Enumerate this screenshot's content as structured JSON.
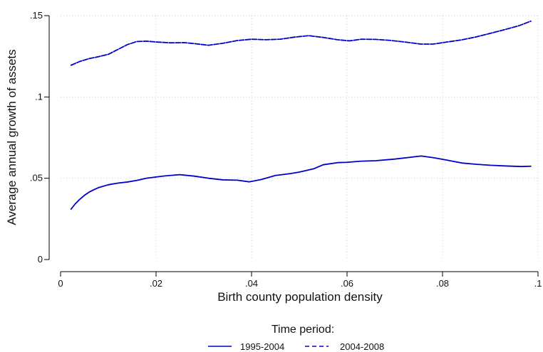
{
  "chart_data": {
    "type": "line",
    "xlabel": "Birth county population density",
    "ylabel": "Average annual growth of assets",
    "xlim": [
      0,
      0.1
    ],
    "ylim": [
      0,
      0.15
    ],
    "x_ticks": [
      {
        "value": 0,
        "label": "0"
      },
      {
        "value": 0.02,
        "label": ".02"
      },
      {
        "value": 0.04,
        "label": ".04"
      },
      {
        "value": 0.06,
        "label": ".06"
      },
      {
        "value": 0.08,
        "label": ".08"
      },
      {
        "value": 0.1,
        "label": ".1"
      }
    ],
    "y_ticks": [
      {
        "value": 0,
        "label": "0"
      },
      {
        "value": 0.05,
        "label": ".05"
      },
      {
        "value": 0.1,
        "label": ".1"
      },
      {
        "value": 0.15,
        "label": ".15"
      }
    ],
    "grid": "dotted, on major y ticks and x ticks",
    "legend": {
      "title": "Time period:",
      "placement": "bottom-center"
    },
    "colors": {
      "series": "#0000cc",
      "grid": "#c8c8c8",
      "axis": "#000000"
    },
    "series": [
      {
        "name": "1995-2004",
        "style": "solid",
        "points": [
          [
            0.0022,
            0.031
          ],
          [
            0.003,
            0.034
          ],
          [
            0.004,
            0.037
          ],
          [
            0.005,
            0.0395
          ],
          [
            0.006,
            0.0415
          ],
          [
            0.007,
            0.043
          ],
          [
            0.008,
            0.0443
          ],
          [
            0.01,
            0.046
          ],
          [
            0.012,
            0.047
          ],
          [
            0.014,
            0.0477
          ],
          [
            0.016,
            0.0487
          ],
          [
            0.018,
            0.05
          ],
          [
            0.02,
            0.0508
          ],
          [
            0.022,
            0.0515
          ],
          [
            0.025,
            0.0522
          ],
          [
            0.028,
            0.0513
          ],
          [
            0.031,
            0.05
          ],
          [
            0.034,
            0.049
          ],
          [
            0.037,
            0.0488
          ],
          [
            0.0395,
            0.0478
          ],
          [
            0.042,
            0.0492
          ],
          [
            0.045,
            0.0517
          ],
          [
            0.048,
            0.0528
          ],
          [
            0.05,
            0.0538
          ],
          [
            0.053,
            0.0558
          ],
          [
            0.055,
            0.0583
          ],
          [
            0.058,
            0.0596
          ],
          [
            0.06,
            0.0598
          ],
          [
            0.063,
            0.0605
          ],
          [
            0.066,
            0.0608
          ],
          [
            0.07,
            0.0618
          ],
          [
            0.073,
            0.0628
          ],
          [
            0.0755,
            0.0637
          ],
          [
            0.078,
            0.0627
          ],
          [
            0.081,
            0.0611
          ],
          [
            0.084,
            0.0594
          ],
          [
            0.087,
            0.0586
          ],
          [
            0.09,
            0.058
          ],
          [
            0.093,
            0.0576
          ],
          [
            0.0965,
            0.0572
          ],
          [
            0.0985,
            0.0574
          ]
        ]
      },
      {
        "name": "2004-2008",
        "style": "dashed",
        "points": [
          [
            0.0022,
            0.1195
          ],
          [
            0.004,
            0.1218
          ],
          [
            0.006,
            0.1236
          ],
          [
            0.008,
            0.1248
          ],
          [
            0.01,
            0.1262
          ],
          [
            0.012,
            0.1292
          ],
          [
            0.014,
            0.1322
          ],
          [
            0.016,
            0.1341
          ],
          [
            0.018,
            0.1343
          ],
          [
            0.02,
            0.1338
          ],
          [
            0.023,
            0.1333
          ],
          [
            0.026,
            0.1334
          ],
          [
            0.028,
            0.1328
          ],
          [
            0.031,
            0.1318
          ],
          [
            0.034,
            0.133
          ],
          [
            0.037,
            0.1347
          ],
          [
            0.04,
            0.1355
          ],
          [
            0.043,
            0.1352
          ],
          [
            0.046,
            0.1355
          ],
          [
            0.049,
            0.1368
          ],
          [
            0.052,
            0.1377
          ],
          [
            0.055,
            0.1366
          ],
          [
            0.058,
            0.1352
          ],
          [
            0.0605,
            0.1345
          ],
          [
            0.063,
            0.1355
          ],
          [
            0.066,
            0.1354
          ],
          [
            0.069,
            0.1348
          ],
          [
            0.072,
            0.1338
          ],
          [
            0.0755,
            0.1325
          ],
          [
            0.078,
            0.1325
          ],
          [
            0.081,
            0.1338
          ],
          [
            0.084,
            0.1351
          ],
          [
            0.087,
            0.1369
          ],
          [
            0.09,
            0.1391
          ],
          [
            0.093,
            0.1414
          ],
          [
            0.096,
            0.1438
          ],
          [
            0.0985,
            0.1466
          ]
        ]
      }
    ]
  }
}
